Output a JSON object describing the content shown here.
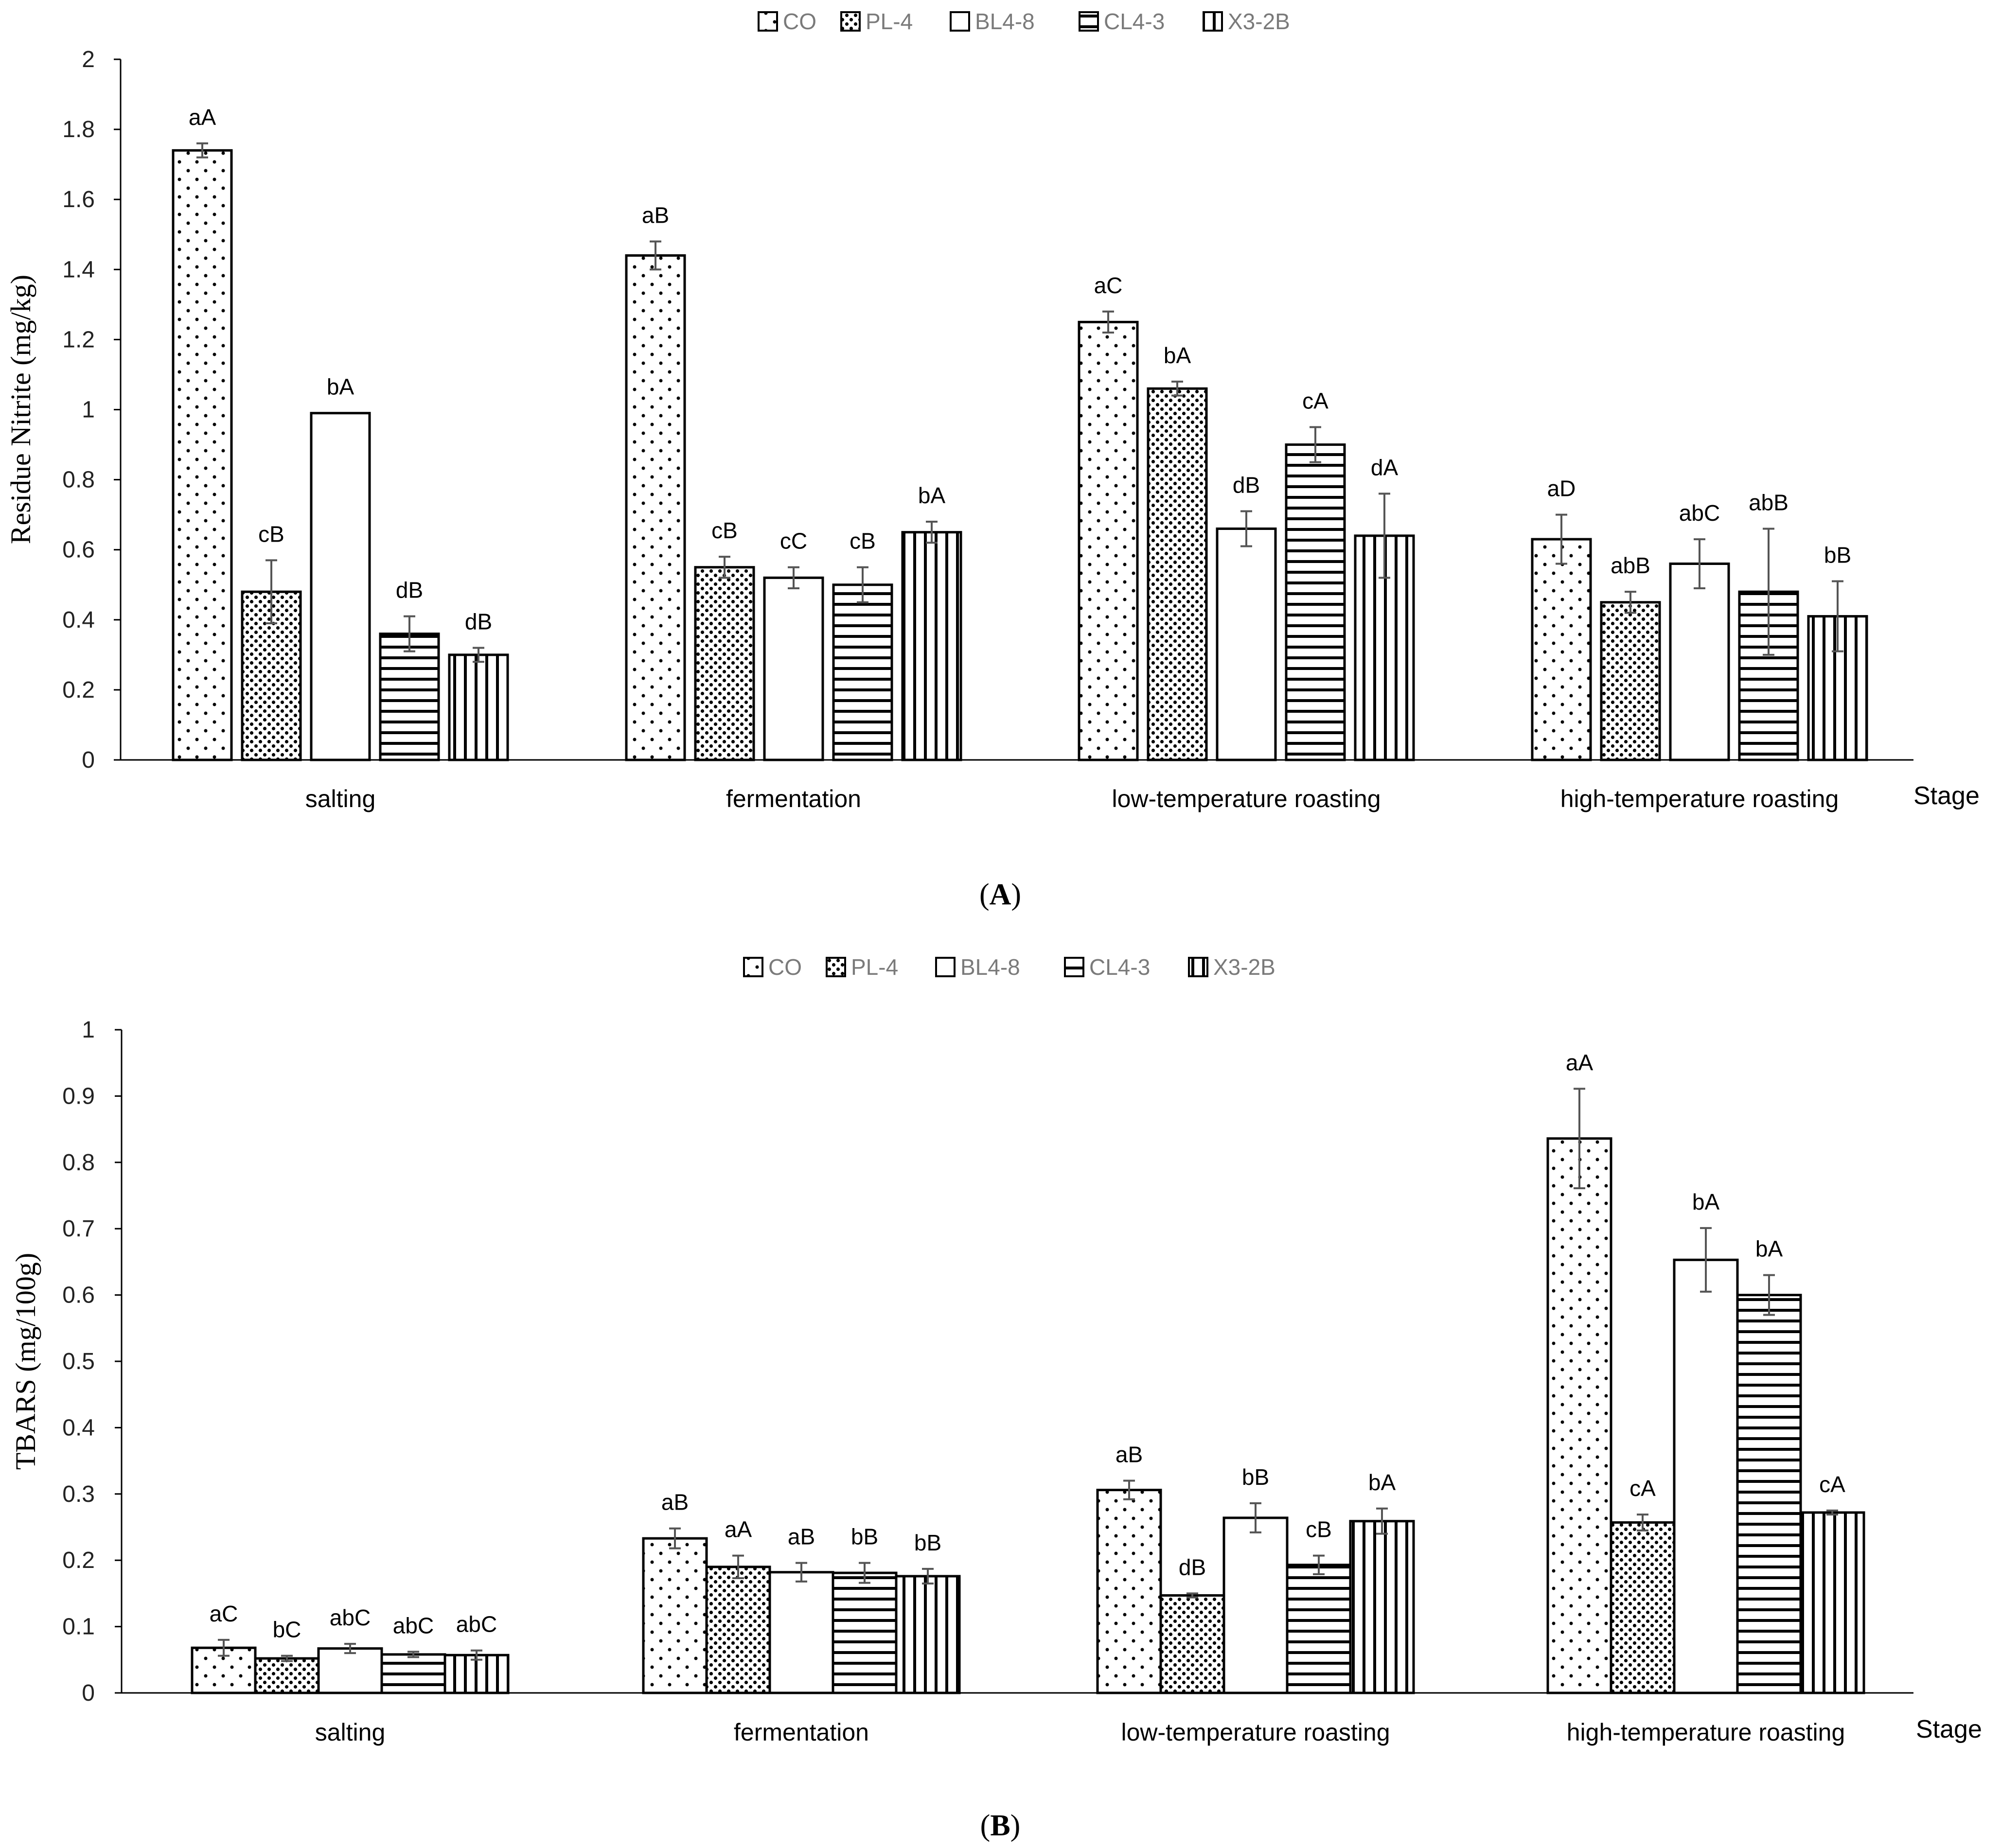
{
  "chart_data": [
    {
      "panel": "A",
      "type": "bar",
      "caption": "A",
      "ylabel": "Residue Nitrite (mg/kg)",
      "xlabel": "Stage",
      "ylim": [
        0,
        2
      ],
      "yticks": [
        "0",
        "0.2",
        "0.4",
        "0.6",
        "0.8",
        "1",
        "1.2",
        "1.4",
        "1.6",
        "1.8",
        "2"
      ],
      "categories": [
        "salting",
        "fermentation",
        "low-temperature roasting",
        "high-temperature roasting"
      ],
      "legend": [
        "CO",
        "PL-4",
        "BL4-8",
        "CL4-3",
        "X3-2B"
      ],
      "series": [
        {
          "name": "CO",
          "values": [
            1.74,
            1.44,
            1.25,
            0.63
          ],
          "errors": [
            0.02,
            0.04,
            0.03,
            0.07
          ],
          "labels": [
            "aA",
            "aB",
            "aC",
            "aD"
          ]
        },
        {
          "name": "PL-4",
          "values": [
            0.48,
            0.55,
            1.06,
            0.45
          ],
          "errors": [
            0.09,
            0.03,
            0.02,
            0.03
          ],
          "labels": [
            "cB",
            "cB",
            "bA",
            "abB"
          ]
        },
        {
          "name": "BL4-8",
          "values": [
            0.99,
            0.52,
            0.66,
            0.56
          ],
          "errors": [
            0.0,
            0.03,
            0.05,
            0.07
          ],
          "labels": [
            "bA",
            "cC",
            "dB",
            "abC"
          ]
        },
        {
          "name": "CL4-3",
          "values": [
            0.36,
            0.5,
            0.9,
            0.48
          ],
          "errors": [
            0.05,
            0.05,
            0.05,
            0.18
          ],
          "labels": [
            "dB",
            "cB",
            "cA",
            "abB"
          ]
        },
        {
          "name": "X3-2B",
          "values": [
            0.3,
            0.65,
            0.64,
            0.41
          ],
          "errors": [
            0.02,
            0.03,
            0.12,
            0.1
          ],
          "labels": [
            "dB",
            "bA",
            "dA",
            "bB"
          ]
        }
      ]
    },
    {
      "panel": "B",
      "type": "bar",
      "caption": "B",
      "ylabel": "TBARS (mg/100g)",
      "xlabel": "Stage",
      "ylim": [
        0,
        1
      ],
      "yticks": [
        "0",
        "0.1",
        "0.2",
        "0.3",
        "0.4",
        "0.5",
        "0.6",
        "0.7",
        "0.8",
        "0.9",
        "1"
      ],
      "categories": [
        "salting",
        "fermentation",
        "low-temperature roasting",
        "high-temperature roasting"
      ],
      "legend": [
        "CO",
        "PL-4",
        "BL4-8",
        "CL4-3",
        "X3-2B"
      ],
      "series": [
        {
          "name": "CO",
          "values": [
            0.068,
            0.233,
            0.306,
            0.836
          ],
          "errors": [
            0.012,
            0.015,
            0.014,
            0.075
          ],
          "labels": [
            "aC",
            "aB",
            "aB",
            "aA"
          ]
        },
        {
          "name": "PL-4",
          "values": [
            0.052,
            0.19,
            0.147,
            0.257
          ],
          "errors": [
            0.004,
            0.017,
            0.003,
            0.012
          ],
          "labels": [
            "bC",
            "aA",
            "dB",
            "cA"
          ]
        },
        {
          "name": "BL4-8",
          "values": [
            0.067,
            0.182,
            0.264,
            0.653
          ],
          "errors": [
            0.007,
            0.014,
            0.022,
            0.048
          ],
          "labels": [
            "abC",
            "aB",
            "bB",
            "bA"
          ]
        },
        {
          "name": "CL4-3",
          "values": [
            0.058,
            0.181,
            0.193,
            0.6
          ],
          "errors": [
            0.004,
            0.015,
            0.014,
            0.03
          ],
          "labels": [
            "abC",
            "bB",
            "cB",
            "bA"
          ]
        },
        {
          "name": "X3-2B",
          "values": [
            0.057,
            0.176,
            0.259,
            0.272
          ],
          "errors": [
            0.007,
            0.011,
            0.019,
            0.003
          ],
          "labels": [
            "abC",
            "bB",
            "bA",
            "cA"
          ]
        }
      ]
    }
  ]
}
